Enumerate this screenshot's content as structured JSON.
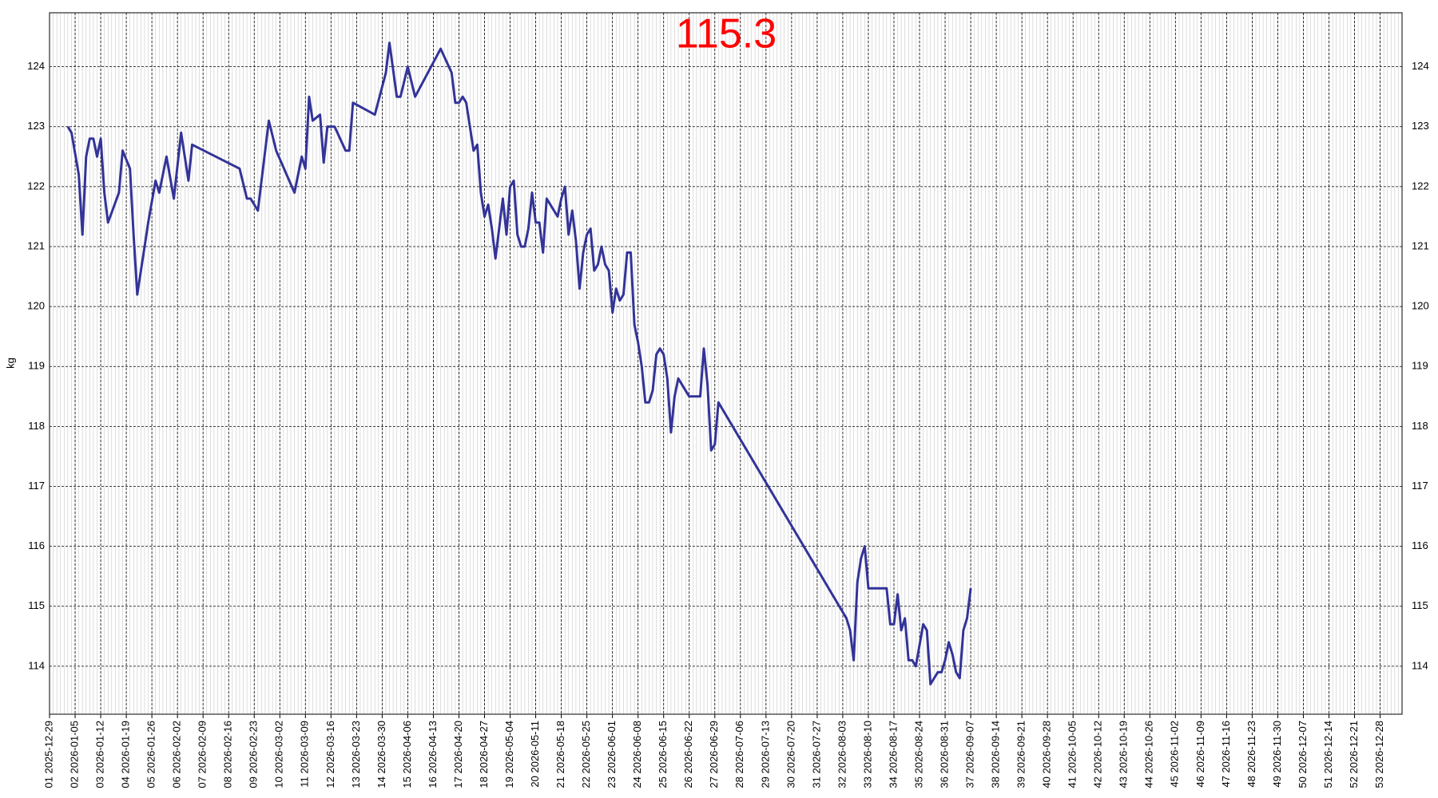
{
  "chart_data": {
    "type": "line",
    "title": "115.3",
    "title_color": "#ff0000",
    "ylabel": "kg",
    "color": "#333399",
    "grid": true,
    "minor_grid": true,
    "xlim": [
      "2025-12-29",
      "2027-01-03"
    ],
    "ylim": [
      113.2,
      124.9
    ],
    "yticks": [
      114,
      115,
      116,
      117,
      118,
      119,
      120,
      121,
      122,
      123,
      124
    ],
    "xticks": [
      {
        "value": "2025-12-29",
        "label": "01 2025-12-29"
      },
      {
        "value": "2026-01-05",
        "label": "02 2026-01-05"
      },
      {
        "value": "2026-01-12",
        "label": "03 2026-01-12"
      },
      {
        "value": "2026-01-19",
        "label": "04 2026-01-19"
      },
      {
        "value": "2026-01-26",
        "label": "05 2026-01-26"
      },
      {
        "value": "2026-02-02",
        "label": "06 2026-02-02"
      },
      {
        "value": "2026-02-09",
        "label": "07 2026-02-09"
      },
      {
        "value": "2026-02-16",
        "label": "08 2026-02-16"
      },
      {
        "value": "2026-02-23",
        "label": "09 2026-02-23"
      },
      {
        "value": "2026-03-02",
        "label": "10 2026-03-02"
      },
      {
        "value": "2026-03-09",
        "label": "11 2026-03-09"
      },
      {
        "value": "2026-03-16",
        "label": "12 2026-03-16"
      },
      {
        "value": "2026-03-23",
        "label": "13 2026-03-23"
      },
      {
        "value": "2026-03-30",
        "label": "14 2026-03-30"
      },
      {
        "value": "2026-04-06",
        "label": "15 2026-04-06"
      },
      {
        "value": "2026-04-13",
        "label": "16 2026-04-13"
      },
      {
        "value": "2026-04-20",
        "label": "17 2026-04-20"
      },
      {
        "value": "2026-04-27",
        "label": "18 2026-04-27"
      },
      {
        "value": "2026-05-04",
        "label": "19 2026-05-04"
      },
      {
        "value": "2026-05-11",
        "label": "20 2026-05-11"
      },
      {
        "value": "2026-05-18",
        "label": "21 2026-05-18"
      },
      {
        "value": "2026-05-25",
        "label": "22 2026-05-25"
      },
      {
        "value": "2026-06-01",
        "label": "23 2026-06-01"
      },
      {
        "value": "2026-06-08",
        "label": "24 2026-06-08"
      },
      {
        "value": "2026-06-15",
        "label": "25 2026-06-15"
      },
      {
        "value": "2026-06-22",
        "label": "26 2026-06-22"
      },
      {
        "value": "2026-06-29",
        "label": "27 2026-06-29"
      },
      {
        "value": "2026-07-06",
        "label": "28 2026-07-06"
      },
      {
        "value": "2026-07-13",
        "label": "29 2026-07-13"
      },
      {
        "value": "2026-07-20",
        "label": "30 2026-07-20"
      },
      {
        "value": "2026-07-27",
        "label": "31 2026-07-27"
      },
      {
        "value": "2026-08-03",
        "label": "32 2026-08-03"
      },
      {
        "value": "2026-08-10",
        "label": "33 2026-08-10"
      },
      {
        "value": "2026-08-17",
        "label": "34 2026-08-17"
      },
      {
        "value": "2026-08-24",
        "label": "35 2026-08-24"
      },
      {
        "value": "2026-08-31",
        "label": "36 2026-08-31"
      },
      {
        "value": "2026-09-07",
        "label": "37 2026-09-07"
      },
      {
        "value": "2026-09-14",
        "label": "38 2026-09-14"
      },
      {
        "value": "2026-09-21",
        "label": "39 2026-09-21"
      },
      {
        "value": "2026-09-28",
        "label": "40 2026-09-28"
      },
      {
        "value": "2026-10-05",
        "label": "41 2026-10-05"
      },
      {
        "value": "2026-10-12",
        "label": "42 2026-10-12"
      },
      {
        "value": "2026-10-19",
        "label": "43 2026-10-19"
      },
      {
        "value": "2026-10-26",
        "label": "44 2026-10-26"
      },
      {
        "value": "2026-11-02",
        "label": "45 2026-11-02"
      },
      {
        "value": "2026-11-09",
        "label": "46 2026-11-09"
      },
      {
        "value": "2026-11-16",
        "label": "47 2026-11-16"
      },
      {
        "value": "2026-11-23",
        "label": "48 2026-11-23"
      },
      {
        "value": "2026-11-30",
        "label": "49 2026-11-30"
      },
      {
        "value": "2026-12-07",
        "label": "50 2026-12-07"
      },
      {
        "value": "2026-12-14",
        "label": "51 2026-12-14"
      },
      {
        "value": "2026-12-21",
        "label": "52 2026-12-21"
      },
      {
        "value": "2026-12-28",
        "label": "53 2026-12-28"
      }
    ],
    "x": [
      "2026-01-03",
      "2026-01-04",
      "2026-01-06",
      "2026-01-07",
      "2026-01-08",
      "2026-01-09",
      "2026-01-10",
      "2026-01-11",
      "2026-01-12",
      "2026-01-13",
      "2026-01-14",
      "2026-01-17",
      "2026-01-18",
      "2026-01-20",
      "2026-01-21",
      "2026-01-22",
      "2026-01-24",
      "2026-01-25",
      "2026-01-27",
      "2026-01-28",
      "2026-01-30",
      "2026-02-01",
      "2026-02-03",
      "2026-02-05",
      "2026-02-06",
      "2026-02-19",
      "2026-02-21",
      "2026-02-22",
      "2026-02-24",
      "2026-02-27",
      "2026-03-01",
      "2026-03-06",
      "2026-03-08",
      "2026-03-09",
      "2026-03-10",
      "2026-03-11",
      "2026-03-13",
      "2026-03-14",
      "2026-03-15",
      "2026-03-17",
      "2026-03-20",
      "2026-03-21",
      "2026-03-22",
      "2026-03-28",
      "2026-03-31",
      "2026-04-01",
      "2026-04-03",
      "2026-04-04",
      "2026-04-06",
      "2026-04-08",
      "2026-04-15",
      "2026-04-18",
      "2026-04-19",
      "2026-04-20",
      "2026-04-21",
      "2026-04-22",
      "2026-04-24",
      "2026-04-25",
      "2026-04-26",
      "2026-04-27",
      "2026-04-28",
      "2026-04-29",
      "2026-04-30",
      "2026-05-01",
      "2026-05-02",
      "2026-05-03",
      "2026-05-04",
      "2026-05-05",
      "2026-05-06",
      "2026-05-07",
      "2026-05-08",
      "2026-05-09",
      "2026-05-10",
      "2026-05-11",
      "2026-05-12",
      "2026-05-13",
      "2026-05-14",
      "2026-05-17",
      "2026-05-18",
      "2026-05-19",
      "2026-05-20",
      "2026-05-21",
      "2026-05-22",
      "2026-05-23",
      "2026-05-24",
      "2026-05-25",
      "2026-05-26",
      "2026-05-27",
      "2026-05-28",
      "2026-05-29",
      "2026-05-30",
      "2026-05-31",
      "2026-06-01",
      "2026-06-02",
      "2026-06-03",
      "2026-06-04",
      "2026-06-05",
      "2026-06-06",
      "2026-06-07",
      "2026-06-08",
      "2026-06-09",
      "2026-06-10",
      "2026-06-11",
      "2026-06-12",
      "2026-06-13",
      "2026-06-14",
      "2026-06-15",
      "2026-06-16",
      "2026-06-17",
      "2026-06-18",
      "2026-06-19",
      "2026-06-22",
      "2026-06-25",
      "2026-06-26",
      "2026-06-27",
      "2026-06-28",
      "2026-06-29",
      "2026-06-30",
      "2026-08-04",
      "2026-08-05",
      "2026-08-06",
      "2026-08-07",
      "2026-08-08",
      "2026-08-09",
      "2026-08-10",
      "2026-08-15",
      "2026-08-16",
      "2026-08-17",
      "2026-08-18",
      "2026-08-19",
      "2026-08-20",
      "2026-08-21",
      "2026-08-22",
      "2026-08-23",
      "2026-08-25",
      "2026-08-26",
      "2026-08-27",
      "2026-08-29",
      "2026-08-30",
      "2026-08-31",
      "2026-09-01",
      "2026-09-02",
      "2026-09-03",
      "2026-09-04",
      "2026-09-05",
      "2026-09-06",
      "2026-09-07"
    ],
    "values": [
      123.0,
      122.9,
      122.2,
      121.2,
      122.5,
      122.8,
      122.8,
      122.5,
      122.8,
      121.9,
      121.4,
      121.9,
      122.6,
      122.3,
      121.2,
      120.2,
      121.0,
      121.4,
      122.1,
      121.9,
      122.5,
      121.8,
      122.9,
      122.1,
      122.7,
      122.3,
      121.8,
      121.8,
      121.6,
      123.1,
      122.6,
      121.9,
      122.5,
      122.3,
      123.5,
      123.1,
      123.2,
      122.4,
      123.0,
      123.0,
      122.6,
      122.6,
      123.4,
      123.2,
      123.9,
      124.4,
      123.5,
      123.5,
      124.0,
      123.5,
      124.3,
      123.9,
      123.4,
      123.4,
      123.5,
      123.4,
      122.6,
      122.7,
      121.9,
      121.5,
      121.7,
      121.3,
      120.8,
      121.3,
      121.8,
      121.2,
      122.0,
      122.1,
      121.2,
      121.0,
      121.0,
      121.3,
      121.9,
      121.4,
      121.4,
      120.9,
      121.8,
      121.5,
      121.8,
      122.0,
      121.2,
      121.6,
      121.1,
      120.3,
      120.9,
      121.2,
      121.3,
      120.6,
      120.7,
      121.0,
      120.7,
      120.6,
      119.9,
      120.3,
      120.1,
      120.2,
      120.9,
      120.9,
      119.7,
      119.4,
      119.0,
      118.4,
      118.4,
      118.6,
      119.2,
      119.3,
      119.2,
      118.8,
      117.9,
      118.5,
      118.8,
      118.5,
      118.5,
      119.3,
      118.7,
      117.6,
      117.7,
      118.4,
      114.8,
      114.6,
      114.1,
      115.4,
      115.8,
      116.0,
      115.3,
      115.3,
      114.7,
      114.7,
      115.2,
      114.6,
      114.8,
      114.1,
      114.1,
      114.0,
      114.7,
      114.6,
      113.7,
      113.9,
      113.9,
      114.1,
      114.4,
      114.2,
      113.9,
      113.8,
      114.6,
      114.8,
      115.3
    ]
  }
}
